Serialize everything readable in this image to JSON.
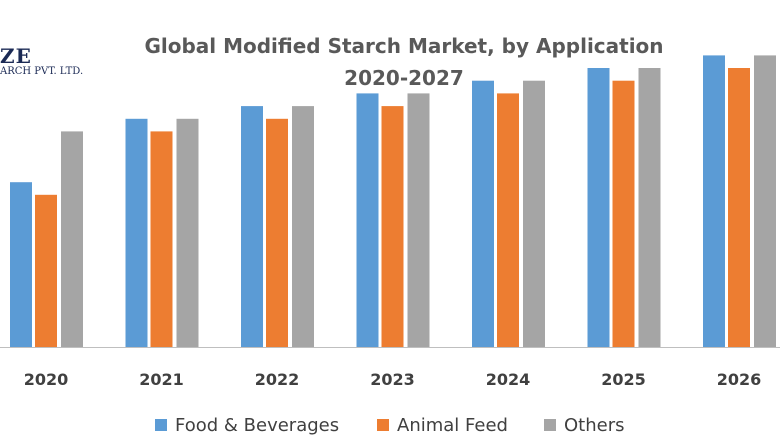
{
  "logo": {
    "name_fragment": "ZE",
    "subtitle_fragment": "ARCH PVT. LTD."
  },
  "title": {
    "line1": "Global Modified Starch Market, by Application",
    "line2": "2020-2027"
  },
  "chart_data": {
    "type": "bar",
    "title": "Global Modified Starch Market, by Application 2020-2027",
    "xlabel": "",
    "ylabel": "",
    "categories": [
      "2020",
      "2021",
      "2022",
      "2023",
      "2024",
      "2025",
      "2026"
    ],
    "ylim": [
      0,
      100
    ],
    "grid": false,
    "legend_position": "bottom",
    "series": [
      {
        "name": "Food & Beverages",
        "color": "#5b9bd5",
        "values": [
          52,
          72,
          76,
          80,
          84,
          88,
          92
        ]
      },
      {
        "name": "Animal Feed",
        "color": "#ed7d31",
        "values": [
          48,
          68,
          72,
          76,
          80,
          84,
          88
        ]
      },
      {
        "name": "Others",
        "color": "#a5a5a5",
        "values": [
          68,
          72,
          76,
          80,
          84,
          88,
          92
        ]
      }
    ]
  }
}
